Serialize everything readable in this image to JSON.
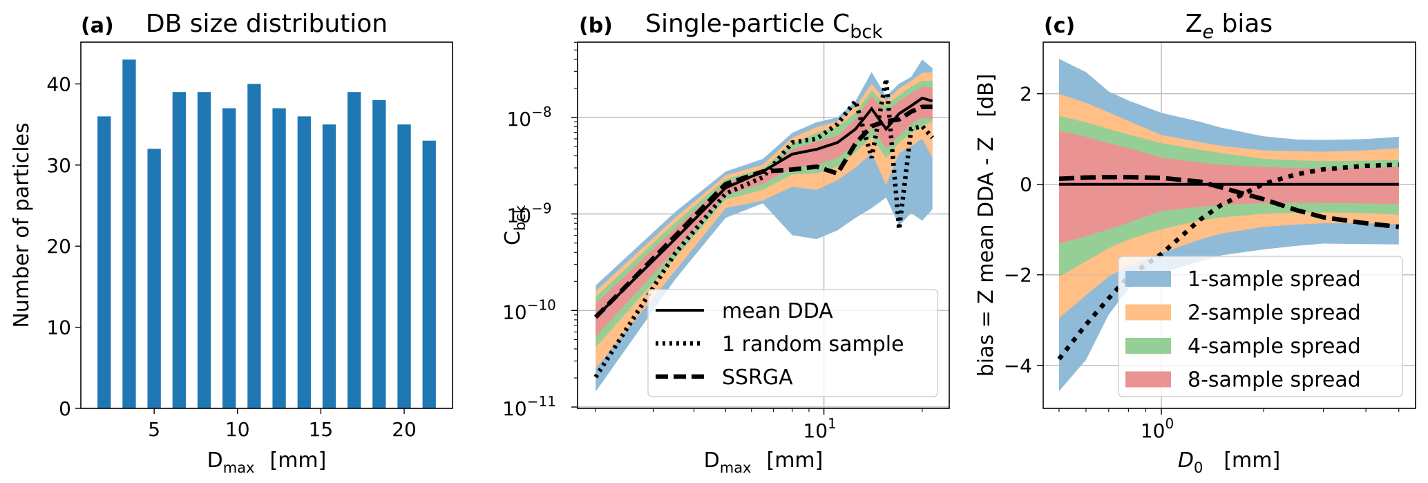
{
  "figure": {
    "panels": [
      "a",
      "b",
      "c"
    ]
  },
  "chart_data": [
    {
      "id": "a",
      "type": "bar",
      "panel_tag": "(a)",
      "title": "DB size distribution",
      "xlabel": "D_max [mm]",
      "xlabel_main": "D",
      "xlabel_sub": "max",
      "xlabel_unit": "[mm]",
      "ylabel": "Number of particles",
      "x": [
        2,
        3.5,
        5,
        6.5,
        8,
        9.5,
        11,
        12.5,
        14,
        15.5,
        17,
        18.5,
        20,
        21.5
      ],
      "values": [
        36,
        43,
        32,
        39,
        39,
        37,
        40,
        37,
        36,
        35,
        39,
        38,
        35,
        33
      ],
      "bar_width": 0.8,
      "color": "#1f77b4",
      "xlim": [
        0.6,
        22.9
      ],
      "ylim": [
        0,
        45.15
      ],
      "xticks": [
        5,
        10,
        15,
        20
      ],
      "xtick_labels": [
        "5",
        "10",
        "15",
        "20"
      ],
      "yticks": [
        0,
        10,
        20,
        30,
        40
      ],
      "ytick_labels": [
        "0",
        "10",
        "20",
        "30",
        "40"
      ],
      "grid": false
    },
    {
      "id": "b",
      "type": "line",
      "panel_tag": "(b)",
      "title": "Single-particle C_bck",
      "title_main": "Single-particle C",
      "title_sub": "bck",
      "xlabel": "D_max [mm]",
      "xlabel_main": "D",
      "xlabel_sub": "max",
      "xlabel_unit": "[mm]",
      "ylabel": "C_bck",
      "ylabel_main": "C",
      "ylabel_sub": "bck",
      "xscale": "log",
      "yscale": "log",
      "xlim": [
        1.76,
        24.2
      ],
      "ylim_log10": [
        -11.014,
        -7.22
      ],
      "xticks_major": [
        10
      ],
      "xtick_labels": [
        {
          "base": "10",
          "exp": "1"
        }
      ],
      "xticks_minor": [
        2,
        3,
        4,
        5,
        6,
        7,
        8,
        9,
        20
      ],
      "yticks_major_log10": [
        -11,
        -10,
        -9,
        -8
      ],
      "ytick_labels": [
        {
          "base": "10",
          "exp": "−11"
        },
        {
          "base": "10",
          "exp": "−10"
        },
        {
          "base": "10",
          "exp": "−9"
        },
        {
          "base": "10",
          "exp": "−8"
        }
      ],
      "grid": true,
      "x": [
        2,
        3.5,
        5,
        6.5,
        8,
        9.5,
        11,
        12.5,
        14,
        15.5,
        17,
        18.5,
        20,
        21.5
      ],
      "bands_log10": [
        {
          "name": "1-sample spread",
          "color": "#8fbbd9",
          "upper": [
            -9.74,
            -8.98,
            -8.56,
            -8.43,
            -8.16,
            -8.05,
            -8.0,
            -7.83,
            -7.53,
            -7.78,
            -7.65,
            -7.58,
            -7.4,
            -7.49
          ],
          "lower": [
            -10.84,
            -9.68,
            -9.04,
            -8.89,
            -9.22,
            -9.26,
            -9.17,
            -9.04,
            -8.94,
            -8.83,
            -9.12,
            -8.99,
            -9.07,
            -8.95
          ]
        },
        {
          "name": "2-sample spread",
          "color": "#ffbf86",
          "upper": [
            -9.8,
            -9.04,
            -8.6,
            -8.49,
            -8.21,
            -8.1,
            -8.04,
            -7.89,
            -7.65,
            -7.83,
            -7.7,
            -7.62,
            -7.54,
            -7.53
          ],
          "lower": [
            -10.6,
            -9.59,
            -8.94,
            -8.86,
            -8.72,
            -8.75,
            -8.65,
            -8.52,
            -8.37,
            -8.7,
            -8.37,
            -8.3,
            -8.22,
            -8.42
          ]
        },
        {
          "name": "4-sample spread",
          "color": "#95cf95",
          "upper": [
            -9.86,
            -9.09,
            -8.64,
            -8.53,
            -8.27,
            -8.16,
            -8.1,
            -7.95,
            -7.72,
            -7.88,
            -7.77,
            -7.68,
            -7.62,
            -7.62
          ],
          "lower": [
            -10.38,
            -9.46,
            -8.85,
            -8.75,
            -8.59,
            -8.58,
            -8.51,
            -8.36,
            -8.2,
            -8.42,
            -8.26,
            -8.16,
            -8.09,
            -8.04
          ]
        },
        {
          "name": "8-sample spread",
          "color": "#ea9393",
          "upper": [
            -9.93,
            -9.15,
            -8.68,
            -8.57,
            -8.33,
            -8.25,
            -8.19,
            -8.02,
            -7.78,
            -7.94,
            -7.83,
            -7.75,
            -7.68,
            -7.69
          ],
          "lower": [
            -10.27,
            -9.38,
            -8.8,
            -8.69,
            -8.52,
            -8.49,
            -8.42,
            -8.27,
            -8.1,
            -8.32,
            -8.19,
            -8.07,
            -8.0,
            -8.02
          ]
        }
      ],
      "series_log10": [
        {
          "name": "mean DDA",
          "style": "solid",
          "values": [
            -10.07,
            -9.26,
            -8.73,
            -8.56,
            -8.38,
            -8.33,
            -8.26,
            -8.12,
            -7.91,
            -8.12,
            -7.96,
            -7.88,
            -7.8,
            -7.83
          ]
        },
        {
          "name": "1 random sample",
          "style": "dotted",
          "values": [
            -10.69,
            -9.41,
            -8.79,
            -8.62,
            -8.26,
            -8.22,
            -8.07,
            -7.83,
            -8.42,
            -7.6,
            -9.16,
            -8.12,
            -8.09,
            -8.21
          ]
        },
        {
          "name": "SSRGA",
          "style": "dashed",
          "values": [
            -10.07,
            -9.23,
            -8.69,
            -8.56,
            -8.54,
            -8.51,
            -8.58,
            -8.27,
            -8.09,
            -8.04,
            -8.02,
            -7.94,
            -7.89,
            -7.89
          ]
        }
      ],
      "legend": {
        "placement": "lower-right",
        "entries": [
          "mean DDA",
          "1 random sample",
          "SSRGA"
        ]
      }
    },
    {
      "id": "c",
      "type": "line",
      "panel_tag": "(c)",
      "title": "Z_e bias",
      "title_main": "Z",
      "title_sub": "e",
      "title_rest": " bias",
      "xlabel": "D_0 [mm]",
      "xlabel_main": "D",
      "xlabel_sub": "0",
      "xlabel_unit": "[mm]",
      "ylabel": "bias = Z mean DDA - Z   [dB]",
      "xscale": "log",
      "yscale": "linear",
      "xlim": [
        0.449,
        5.6
      ],
      "ylim": [
        -4.95,
        3.14
      ],
      "xticks_major": [
        1
      ],
      "xtick_labels": [
        {
          "base": "10",
          "exp": "0"
        }
      ],
      "xticks_minor": [
        0.5,
        0.6,
        0.7,
        0.8,
        0.9,
        2,
        3,
        4,
        5
      ],
      "yticks": [
        -4,
        -2,
        0,
        2
      ],
      "ytick_labels": [
        "−4",
        "−2",
        "0",
        "2"
      ],
      "grid": true,
      "x": [
        0.5,
        0.6,
        0.7,
        0.8,
        1.0,
        1.3,
        1.5,
        2.0,
        2.5,
        3.0,
        4.0,
        5.0
      ],
      "bands": [
        {
          "name": "1-sample spread",
          "color": "#8fbbd9",
          "upper": [
            2.77,
            2.48,
            2.05,
            1.85,
            1.58,
            1.38,
            1.25,
            1.06,
            0.99,
            0.98,
            1.0,
            1.05
          ],
          "lower": [
            -4.57,
            -3.88,
            -2.88,
            -2.31,
            -1.96,
            -1.7,
            -1.57,
            -1.44,
            -1.36,
            -1.31,
            -1.32,
            -1.33
          ]
        },
        {
          "name": "2-sample spread",
          "color": "#ffbf86",
          "upper": [
            2.0,
            1.8,
            1.59,
            1.4,
            1.09,
            0.93,
            0.85,
            0.75,
            0.73,
            0.72,
            0.75,
            0.8
          ],
          "lower": [
            -2.96,
            -2.45,
            -2.04,
            -1.8,
            -1.52,
            -1.22,
            -1.09,
            -0.94,
            -0.89,
            -0.86,
            -0.86,
            -0.88
          ]
        },
        {
          "name": "4-sample spread",
          "color": "#95cf95",
          "upper": [
            1.51,
            1.37,
            1.22,
            1.1,
            0.91,
            0.76,
            0.69,
            0.56,
            0.53,
            0.51,
            0.52,
            0.54
          ],
          "lower": [
            -2.04,
            -1.7,
            -1.41,
            -1.22,
            -0.99,
            -0.8,
            -0.73,
            -0.65,
            -0.63,
            -0.62,
            -0.64,
            -0.67
          ]
        },
        {
          "name": "8-sample spread",
          "color": "#ea9393",
          "upper": [
            1.18,
            1.05,
            0.91,
            0.8,
            0.59,
            0.48,
            0.43,
            0.38,
            0.36,
            0.35,
            0.36,
            0.38
          ],
          "lower": [
            -1.31,
            -1.15,
            -0.99,
            -0.85,
            -0.59,
            -0.5,
            -0.46,
            -0.41,
            -0.41,
            -0.41,
            -0.42,
            -0.44
          ]
        }
      ],
      "series": [
        {
          "name": "mean DDA",
          "style": "solid",
          "values": [
            0,
            0,
            0,
            0,
            0,
            0,
            0,
            0,
            0,
            0,
            0,
            0
          ]
        },
        {
          "name": "1 random sample",
          "style": "dotted",
          "values": [
            -3.86,
            -3.1,
            -2.52,
            -2.04,
            -1.54,
            -0.78,
            -0.46,
            0.01,
            0.22,
            0.33,
            0.41,
            0.43
          ]
        },
        {
          "name": "SSRGA",
          "style": "dashed",
          "values": [
            0.12,
            0.15,
            0.16,
            0.16,
            0.14,
            0.06,
            -0.07,
            -0.33,
            -0.57,
            -0.73,
            -0.86,
            -0.94
          ]
        }
      ],
      "legend": {
        "placement": "lower-right",
        "entries": [
          "1-sample spread",
          "2-sample spread",
          "4-sample spread",
          "8-sample spread"
        ]
      }
    }
  ]
}
